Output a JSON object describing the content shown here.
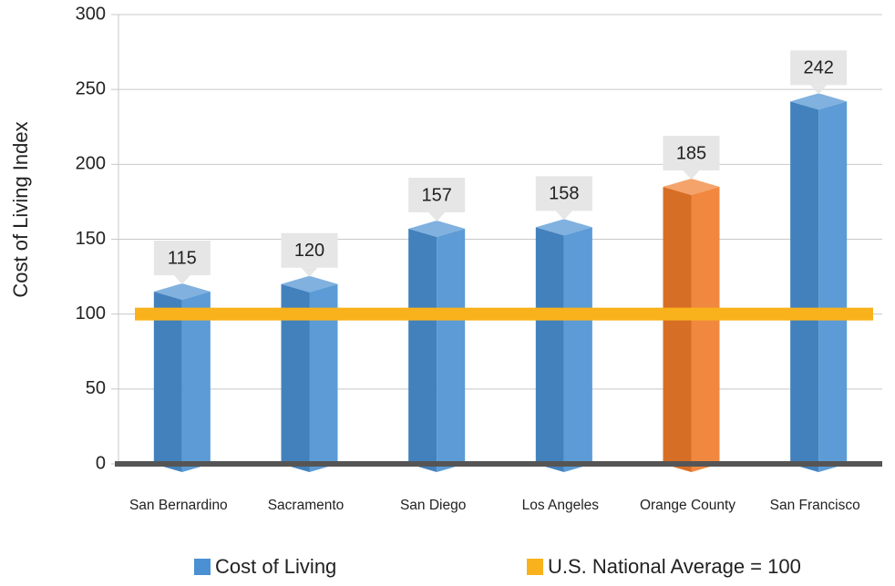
{
  "chart_data": {
    "type": "bar",
    "y_label": "Cost of Living Index",
    "categories": [
      "San Bernardino",
      "Sacramento",
      "San Diego",
      "Los Angeles",
      "Orange County",
      "San Francisco"
    ],
    "series": [
      {
        "name": "Cost of Living",
        "color": "#4a90d2",
        "colors": [
          "#4a90d2",
          "#4a90d2",
          "#4a90d2",
          "#4a90d2",
          "#f07b2a",
          "#4a90d2"
        ],
        "values": [
          115,
          120,
          157,
          158,
          185,
          242
        ]
      }
    ],
    "reference_line": {
      "name": "U.S. National Average = 100",
      "value": 100,
      "color": "#f9b21b"
    },
    "ylim": [
      0,
      300
    ],
    "yticks": [
      0,
      50,
      100,
      150,
      200,
      250,
      300
    ],
    "grid": true
  }
}
